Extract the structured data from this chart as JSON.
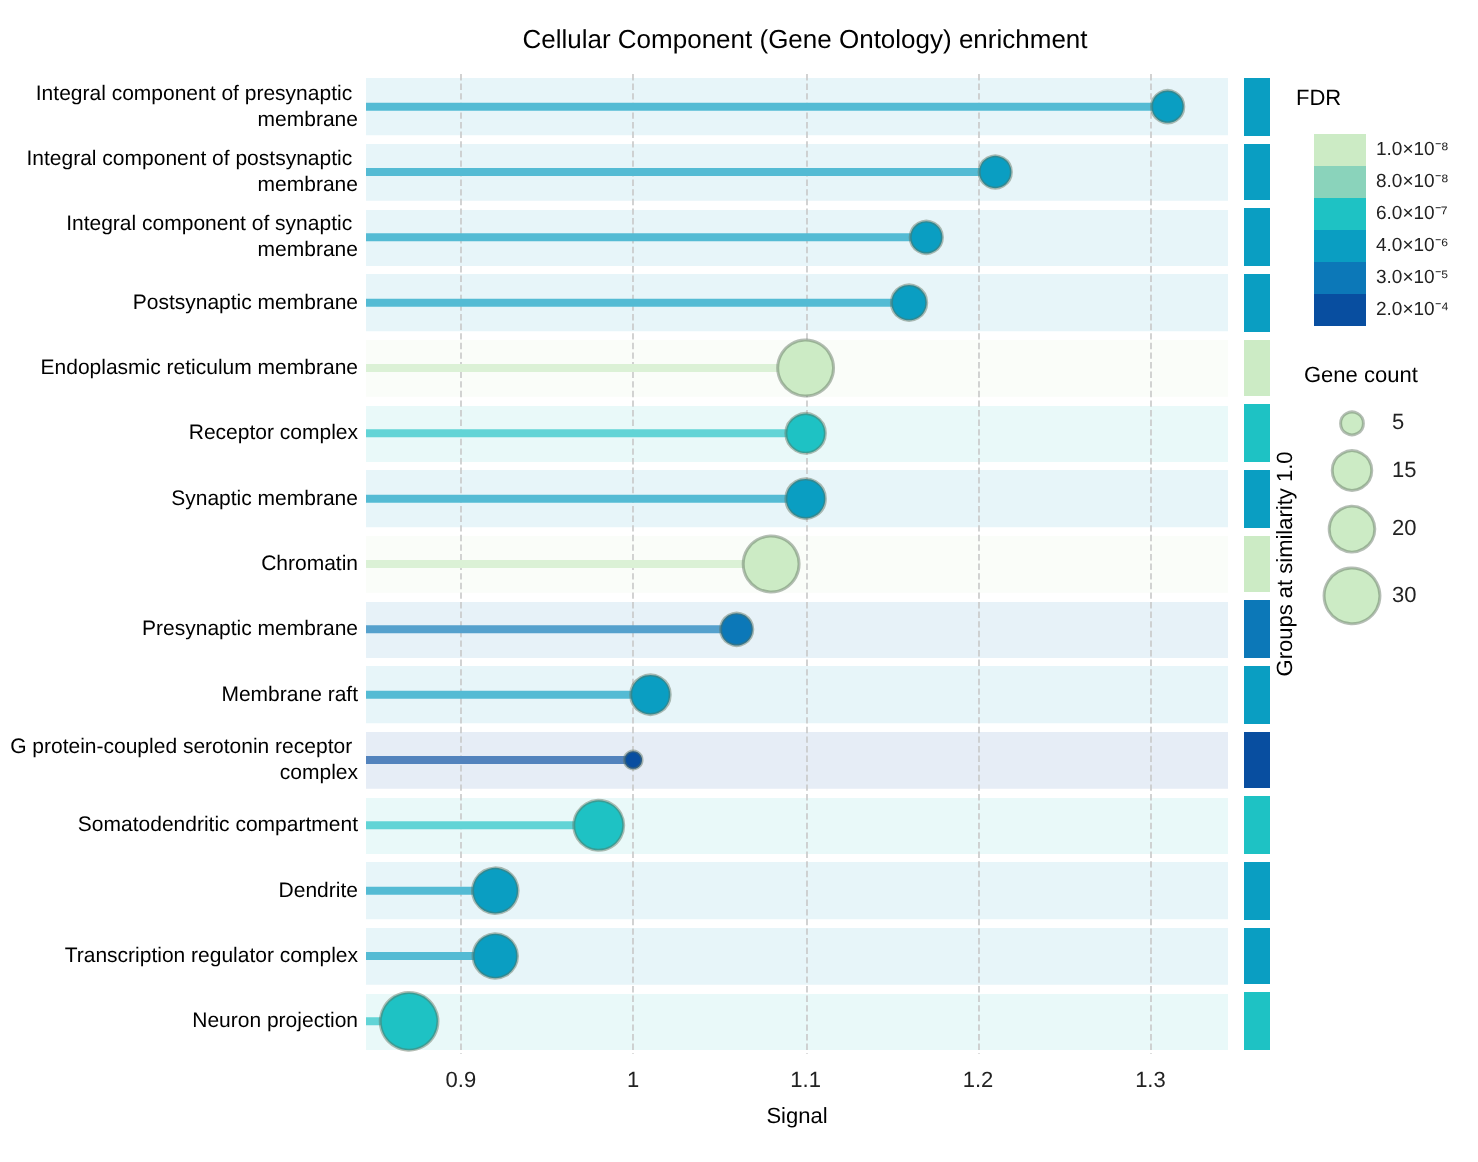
{
  "chart_data": {
    "type": "lollipop",
    "orientation": "horizontal",
    "title": "Cellular Component (Gene Ontology) enrichment",
    "xlabel": "Signal",
    "legend_title": "FDR",
    "legend": "right",
    "categories": [
      "Integral component of presynaptic membrane",
      "Integral component of postsynaptic membrane",
      "Integral component of synaptic membrane",
      "Postsynaptic membrane",
      "Endoplasmic reticulum membrane",
      "Receptor complex",
      "Synaptic membrane",
      "Chromatin",
      "Presynaptic membrane",
      "Membrane raft",
      "G protein-coupled serotonin receptor complex",
      "Somatodendritic compartment",
      "Dendrite",
      "Transcription regulator complex",
      "Neuron projection"
    ],
    "series": [
      {
        "name": "1.0×10⁻⁸",
        "color": "#ccebc5",
        "values": [
          null,
          null,
          null,
          null,
          1.1,
          null,
          null,
          1.08,
          null,
          null,
          null,
          null,
          null,
          null,
          null
        ],
        "sizes": [
          null,
          null,
          null,
          null,
          30,
          null,
          null,
          30,
          null,
          null,
          null,
          null,
          null,
          null,
          null
        ]
      },
      {
        "name": "8.0×10⁻⁸",
        "color": "#8ad3bb",
        "values": [
          null,
          null,
          null,
          null,
          null,
          null,
          null,
          null,
          null,
          null,
          null,
          null,
          null,
          null,
          null
        ],
        "sizes": [
          null,
          null,
          null,
          null,
          null,
          null,
          null,
          null,
          null,
          null,
          null,
          null,
          null,
          null,
          null
        ]
      },
      {
        "name": "6.0×10⁻⁷",
        "color": "#1ec2c4",
        "values": [
          null,
          null,
          null,
          null,
          null,
          1.1,
          null,
          null,
          null,
          null,
          null,
          0.98,
          null,
          null,
          0.87
        ],
        "sizes": [
          null,
          null,
          null,
          null,
          null,
          15,
          null,
          null,
          null,
          null,
          null,
          24,
          null,
          null,
          32
        ]
      },
      {
        "name": "4.0×10⁻⁶",
        "color": "#0a9ec2",
        "values": [
          1.31,
          1.21,
          1.17,
          1.16,
          null,
          null,
          1.1,
          null,
          null,
          1.01,
          null,
          null,
          0.92,
          0.92,
          null
        ],
        "sizes": [
          10,
          10,
          10,
          12,
          null,
          null,
          15,
          null,
          null,
          15,
          null,
          null,
          20,
          19,
          null
        ]
      },
      {
        "name": "3.0×10⁻⁵",
        "color": "#0c78b8",
        "values": [
          null,
          null,
          null,
          null,
          null,
          null,
          null,
          null,
          1.06,
          null,
          null,
          null,
          null,
          null,
          null
        ],
        "sizes": [
          null,
          null,
          null,
          null,
          null,
          null,
          null,
          null,
          10,
          null,
          null,
          null,
          null,
          null,
          null
        ]
      },
      {
        "name": "2.0×10⁻⁴",
        "color": "#084ea0",
        "values": [
          null,
          null,
          null,
          null,
          null,
          null,
          null,
          null,
          null,
          null,
          1.0,
          null,
          null,
          null,
          null
        ],
        "sizes": [
          null,
          null,
          null,
          null,
          null,
          null,
          null,
          null,
          null,
          null,
          3,
          null,
          null,
          null,
          null
        ]
      }
    ],
    "size_legend": [
      5,
      15,
      20,
      30
    ],
    "annotations": [
      "Groups at similarity 1.0",
      "Gene count"
    ],
    "bands": [
      {
        "axis": "y",
        "from": "Integral component of presynaptic membrane",
        "to": "Integral component of presynaptic membrane",
        "color": "#e7f5f9"
      },
      {
        "axis": "y",
        "from": "Integral component of postsynaptic membrane",
        "to": "Integral component of postsynaptic membrane",
        "color": "#e7f5f9"
      },
      {
        "axis": "y",
        "from": "Integral component of synaptic membrane",
        "to": "Integral component of synaptic membrane",
        "color": "#e7f5f9"
      },
      {
        "axis": "y",
        "from": "Postsynaptic membrane",
        "to": "Postsynaptic membrane",
        "color": "#e7f5f9"
      },
      {
        "axis": "y",
        "from": "Endoplasmic reticulum membrane",
        "to": "Endoplasmic reticulum membrane",
        "color": "#fafdf9"
      },
      {
        "axis": "y",
        "from": "Receptor complex",
        "to": "Receptor complex",
        "color": "#e9f9f9"
      },
      {
        "axis": "y",
        "from": "Synaptic membrane",
        "to": "Synaptic membrane",
        "color": "#e7f5f9"
      },
      {
        "axis": "y",
        "from": "Chromatin",
        "to": "Chromatin",
        "color": "#fafdf9"
      },
      {
        "axis": "y",
        "from": "Presynaptic membrane",
        "to": "Presynaptic membrane",
        "color": "#e7f2f8"
      },
      {
        "axis": "y",
        "from": "Membrane raft",
        "to": "Membrane raft",
        "color": "#e7f5f9"
      },
      {
        "axis": "y",
        "from": "G protein-coupled serotonin receptor complex",
        "to": "G protein-coupled serotonin receptor complex",
        "color": "#e6edf6"
      },
      {
        "axis": "y",
        "from": "Somatodendritic compartment",
        "to": "Somatodendritic compartment",
        "color": "#e9f9f9"
      },
      {
        "axis": "y",
        "from": "Dendrite",
        "to": "Dendrite",
        "color": "#e7f5f9"
      },
      {
        "axis": "y",
        "from": "Transcription regulator complex",
        "to": "Transcription regulator complex",
        "color": "#e7f5f9"
      },
      {
        "axis": "y",
        "from": "Neuron projection",
        "to": "Neuron projection",
        "color": "#e9f9f9"
      }
    ],
    "xlim": [
      0.845,
      1.345
    ],
    "xticks": [
      0.9,
      1.0,
      1.1,
      1.2,
      1.3
    ],
    "grid": true
  }
}
